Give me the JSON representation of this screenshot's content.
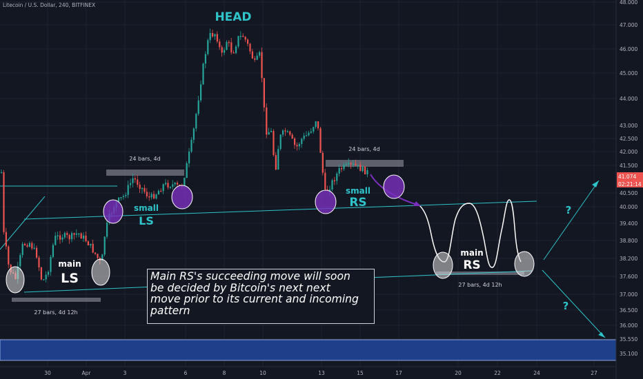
{
  "header": {
    "title": "Litecoin / U.S. Dollar, 240, BITFINEX"
  },
  "colors": {
    "background": "#131722",
    "up": "#26a69a",
    "down": "#ef5350",
    "accent": "#2ec4c9",
    "purple": "#7b2fbe"
  },
  "chart_data": {
    "type": "candlestick",
    "title": "Litecoin / U.S. Dollar, 240, BITFINEX",
    "ylim": [
      34.9,
      48.0
    ],
    "y_ticks": [
      "48.000",
      "47.000",
      "46.000",
      "45.000",
      "44.000",
      "43.000",
      "42.500",
      "42.000",
      "41.500",
      "41.074",
      "40.500",
      "40.000",
      "39.400",
      "38.800",
      "38.200",
      "37.600",
      "37.000",
      "36.500",
      "36.000",
      "35.550",
      "35.100"
    ],
    "current_price": "41.074",
    "countdown": "02:21:14",
    "x_ticks": [
      "30",
      "Apr",
      "3",
      "6",
      "8",
      "10",
      "13",
      "15",
      "17",
      "20",
      "22",
      "24",
      "27"
    ],
    "annotations": {
      "head": "HEAD",
      "small_ls_word": "small",
      "small_ls": "LS",
      "small_rs_word": "small",
      "small_rs": "RS",
      "main_ls_word": "main",
      "main_ls": "LS",
      "main_rs_word": "main",
      "main_rs": "RS",
      "range_left_top": "24 bars, 4d",
      "range_right_top": "24 bars, 4d",
      "range_left_bottom": "27 bars, 4d 12h",
      "range_right_bottom": "27 bars, 4d 12h",
      "question_up": "?",
      "question_down": "?"
    },
    "note_lines": [
      "Main RS's succeeding move will soon",
      "be decided by Bitcoin's next next",
      "move prior to its current and incoming",
      "pattern"
    ]
  }
}
